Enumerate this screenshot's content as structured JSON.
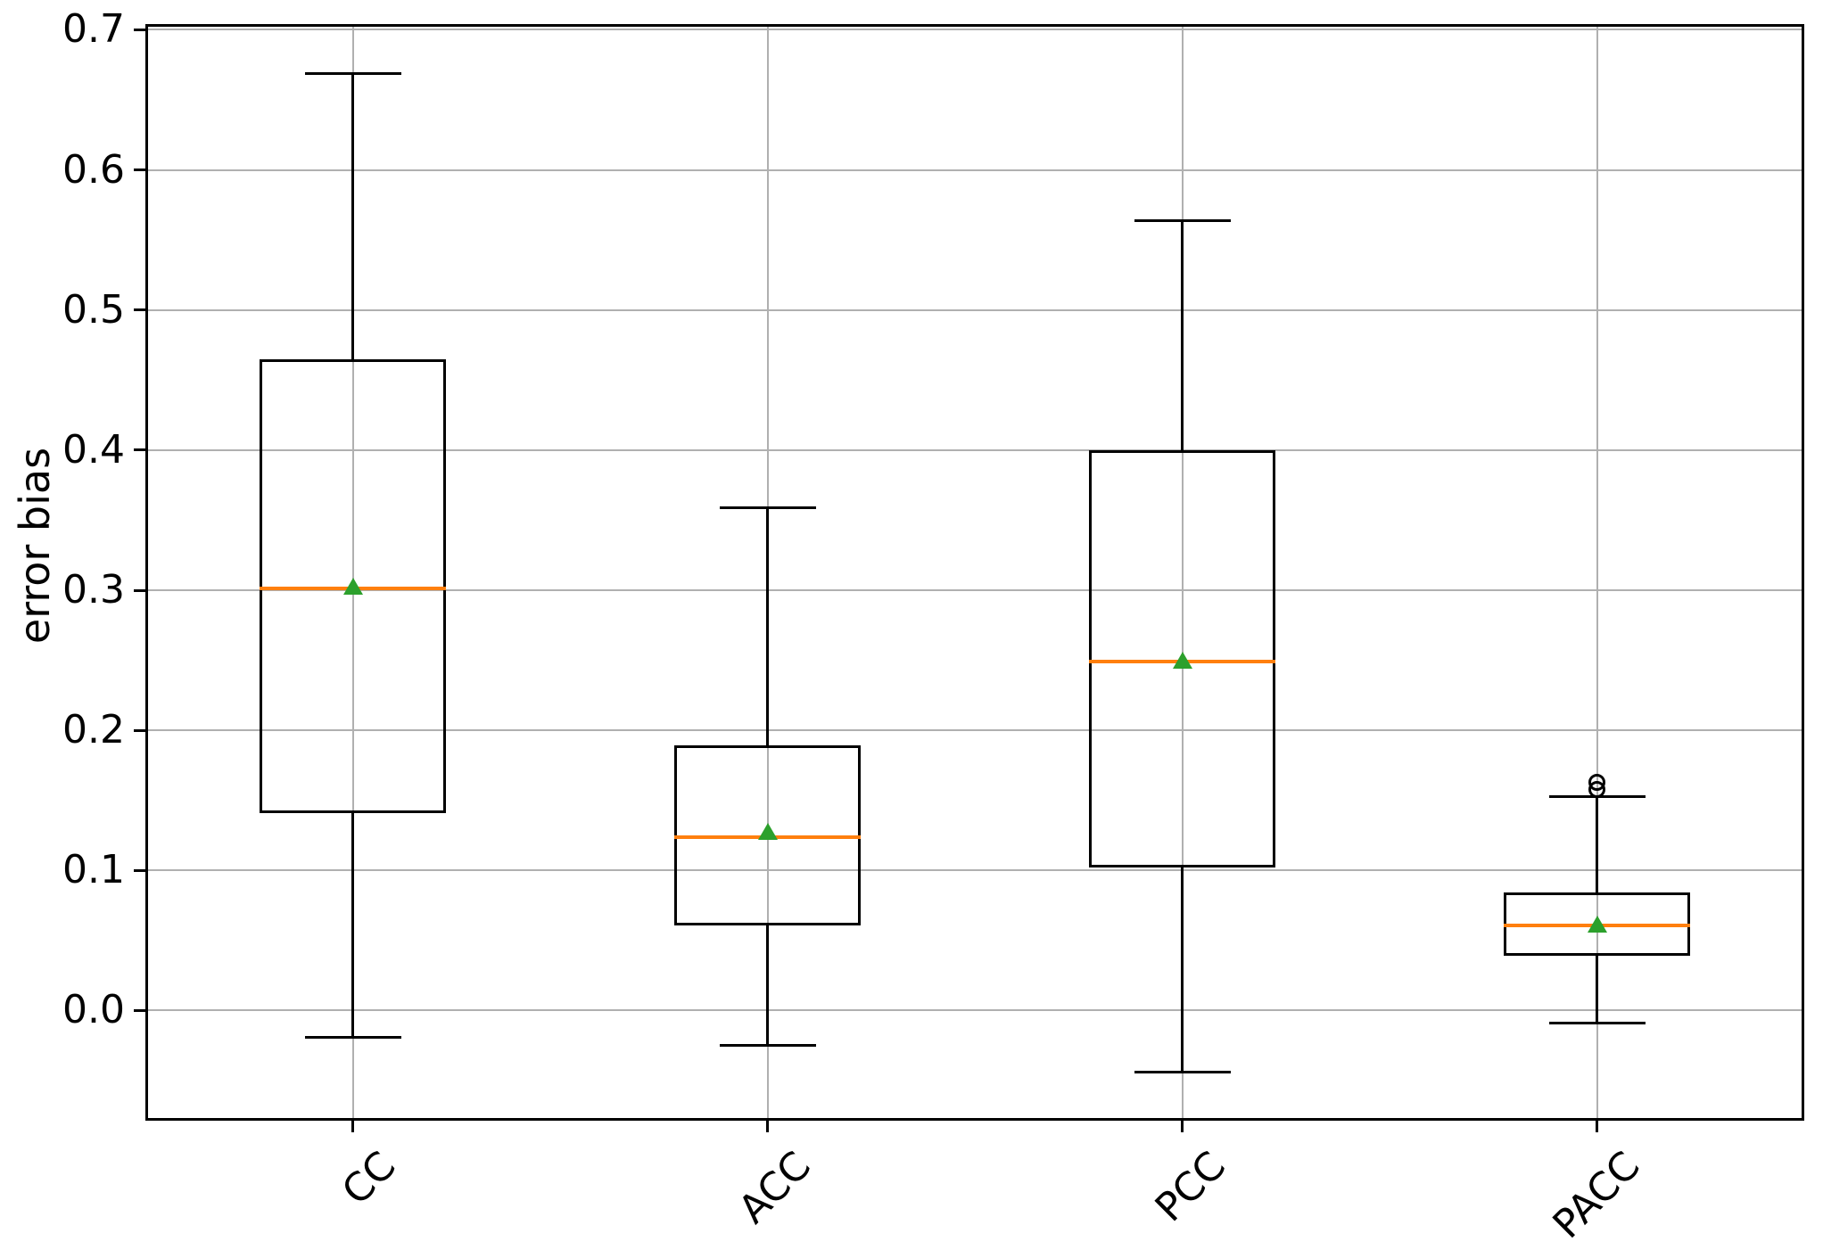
{
  "figure": {
    "background": "#ffffff"
  },
  "chart_data": {
    "type": "box",
    "title": "",
    "xlabel": "",
    "ylabel": "error bias",
    "categories": [
      "CC",
      "ACC",
      "PCC",
      "PACC"
    ],
    "series": [
      {
        "name": "CC",
        "whislo": -0.019,
        "q1": 0.141,
        "med": 0.301,
        "q3": 0.465,
        "whishi": 0.669,
        "mean": 0.303,
        "fliers": []
      },
      {
        "name": "ACC",
        "whislo": -0.025,
        "q1": 0.061,
        "med": 0.124,
        "q3": 0.189,
        "whishi": 0.359,
        "mean": 0.128,
        "fliers": []
      },
      {
        "name": "PCC",
        "whislo": -0.044,
        "q1": 0.102,
        "med": 0.249,
        "q3": 0.4,
        "whishi": 0.564,
        "mean": 0.25,
        "fliers": []
      },
      {
        "name": "PACC",
        "whislo": -0.009,
        "q1": 0.039,
        "med": 0.061,
        "q3": 0.084,
        "whishi": 0.153,
        "mean": 0.062,
        "fliers": [
          0.163,
          0.158
        ]
      }
    ],
    "ylim": [
      -0.0786,
      0.7041
    ],
    "xlim": [
      0.5,
      4.5
    ],
    "positions": [
      1,
      2,
      3,
      4
    ],
    "yticks": [
      0.0,
      0.1,
      0.2,
      0.3,
      0.4,
      0.5,
      0.6,
      0.7
    ],
    "ytick_labels": [
      "0.0",
      "0.1",
      "0.2",
      "0.3",
      "0.4",
      "0.5",
      "0.6",
      "0.7"
    ],
    "xtick_label_rotation_deg": 45,
    "grid": true,
    "legend": null,
    "style": {
      "median_color": "#ff7f0e",
      "mean_marker_color": "#2ca02c",
      "box_line_color": "#000000",
      "grid_color": "#b0b0b0",
      "mean_marker_shape": "triangle-up",
      "flier_marker_shape": "circle"
    }
  }
}
